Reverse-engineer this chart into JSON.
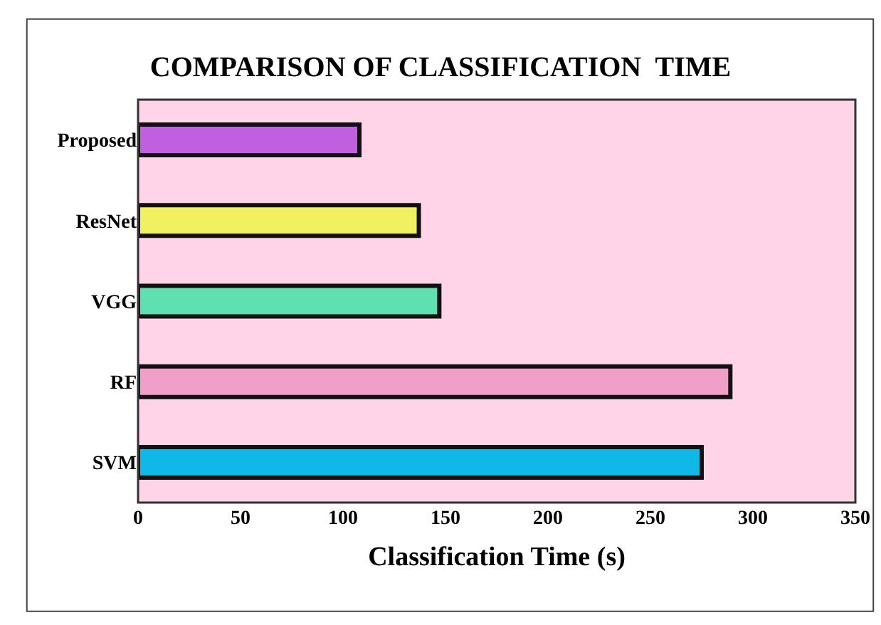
{
  "chart_data": {
    "type": "bar",
    "orientation": "horizontal",
    "title": "COMPARISON OF CLASSIFICATION  TIME",
    "xlabel": "Classification Time (s)",
    "categories": [
      "Proposed",
      "ResNet",
      "VGG",
      "RF",
      "SVM"
    ],
    "values": [
      108,
      137,
      147,
      289,
      275
    ],
    "colors": [
      "#c060e0",
      "#f0f060",
      "#60e0b0",
      "#f0a0c8",
      "#10b8e8"
    ],
    "xlim": [
      0,
      350
    ],
    "xticks": [
      0,
      50,
      100,
      150,
      200,
      250,
      300,
      350
    ],
    "grid": false
  }
}
